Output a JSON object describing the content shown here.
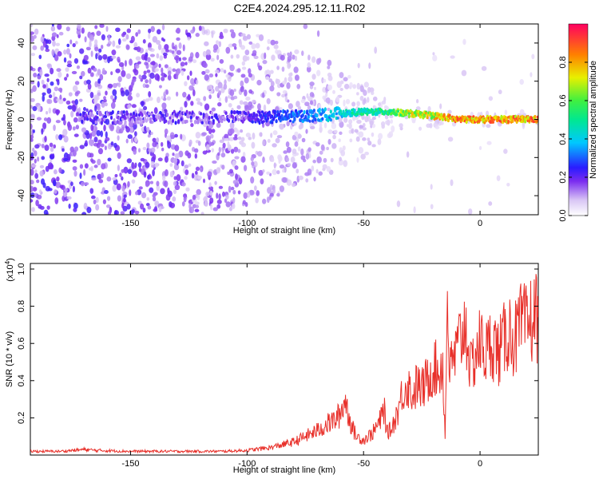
{
  "title": "C2E4.2024.295.12.11.R02",
  "chart_data": [
    {
      "type": "heatmap",
      "xlabel": "Height of straight line (km)",
      "ylabel": "Frequency (Hz)",
      "xlim": [
        -193,
        25
      ],
      "ylim": [
        -50,
        50
      ],
      "x_ticks": [
        -150,
        -100,
        -50,
        0
      ],
      "y_ticks": [
        -40,
        -20,
        0,
        20,
        40
      ],
      "colorbar": {
        "label": "Normalized spectral amplitude",
        "range": [
          0,
          1
        ],
        "ticks": [
          "0.0",
          "0.2",
          "0.4",
          "0.6",
          "0.8"
        ]
      },
      "ridge": {
        "description_x": [
          -170,
          -100,
          -70,
          -50,
          -40,
          -30,
          -20,
          -15,
          -10,
          0,
          25
        ],
        "center_frequency_hz": [
          1,
          1,
          2,
          4,
          4,
          3,
          2,
          1,
          0,
          0,
          0
        ],
        "peak_amplitude": [
          0.25,
          0.25,
          0.4,
          0.55,
          0.6,
          0.8,
          0.85,
          0.9,
          0.95,
          0.95,
          0.95
        ],
        "frequency_spread_hz": [
          48,
          45,
          30,
          18,
          8,
          5,
          4,
          3,
          2,
          2,
          2
        ]
      }
    },
    {
      "type": "line",
      "xlabel": "Height of straight line (km)",
      "ylabel": "SNR (10 * v/v)",
      "y_multiplier": "(x10",
      "y_multiplier_exp": "4",
      "y_multiplier_close": ")",
      "xlim": [
        -193,
        25
      ],
      "ylim": [
        0,
        1.03
      ],
      "x_ticks": [
        -150,
        -100,
        -50,
        0
      ],
      "y_ticks": [
        "0.2",
        "0.4",
        "0.6",
        "0.8",
        "1.0"
      ],
      "series": [
        {
          "color": "#e8302a",
          "x": [
            -193,
            -180,
            -170,
            -165,
            -150,
            -130,
            -110,
            -100,
            -90,
            -80,
            -75,
            -70,
            -65,
            -62,
            -60,
            -58,
            -56,
            -55,
            -53,
            -50,
            -46,
            -43,
            -41,
            -40,
            -38,
            -35,
            -33,
            -31,
            -29,
            -27,
            -25,
            -22,
            -20,
            -18,
            -16,
            -15,
            -14,
            -13,
            -12,
            -10,
            -8,
            -6,
            -4,
            -2,
            0,
            3,
            5,
            8,
            10,
            12,
            15,
            18,
            20,
            22,
            25
          ],
          "y": [
            0.02,
            0.02,
            0.03,
            0.025,
            0.02,
            0.02,
            0.02,
            0.025,
            0.04,
            0.07,
            0.1,
            0.13,
            0.17,
            0.19,
            0.22,
            0.3,
            0.2,
            0.15,
            0.1,
            0.08,
            0.12,
            0.18,
            0.25,
            0.12,
            0.14,
            0.25,
            0.35,
            0.38,
            0.32,
            0.38,
            0.35,
            0.42,
            0.48,
            0.44,
            0.5,
            0.08,
            0.9,
            0.42,
            0.5,
            0.55,
            0.65,
            0.7,
            0.45,
            0.55,
            0.6,
            0.55,
            0.62,
            0.55,
            0.6,
            0.68,
            0.62,
            0.7,
            0.68,
            0.73,
            0.76
          ]
        }
      ]
    }
  ]
}
